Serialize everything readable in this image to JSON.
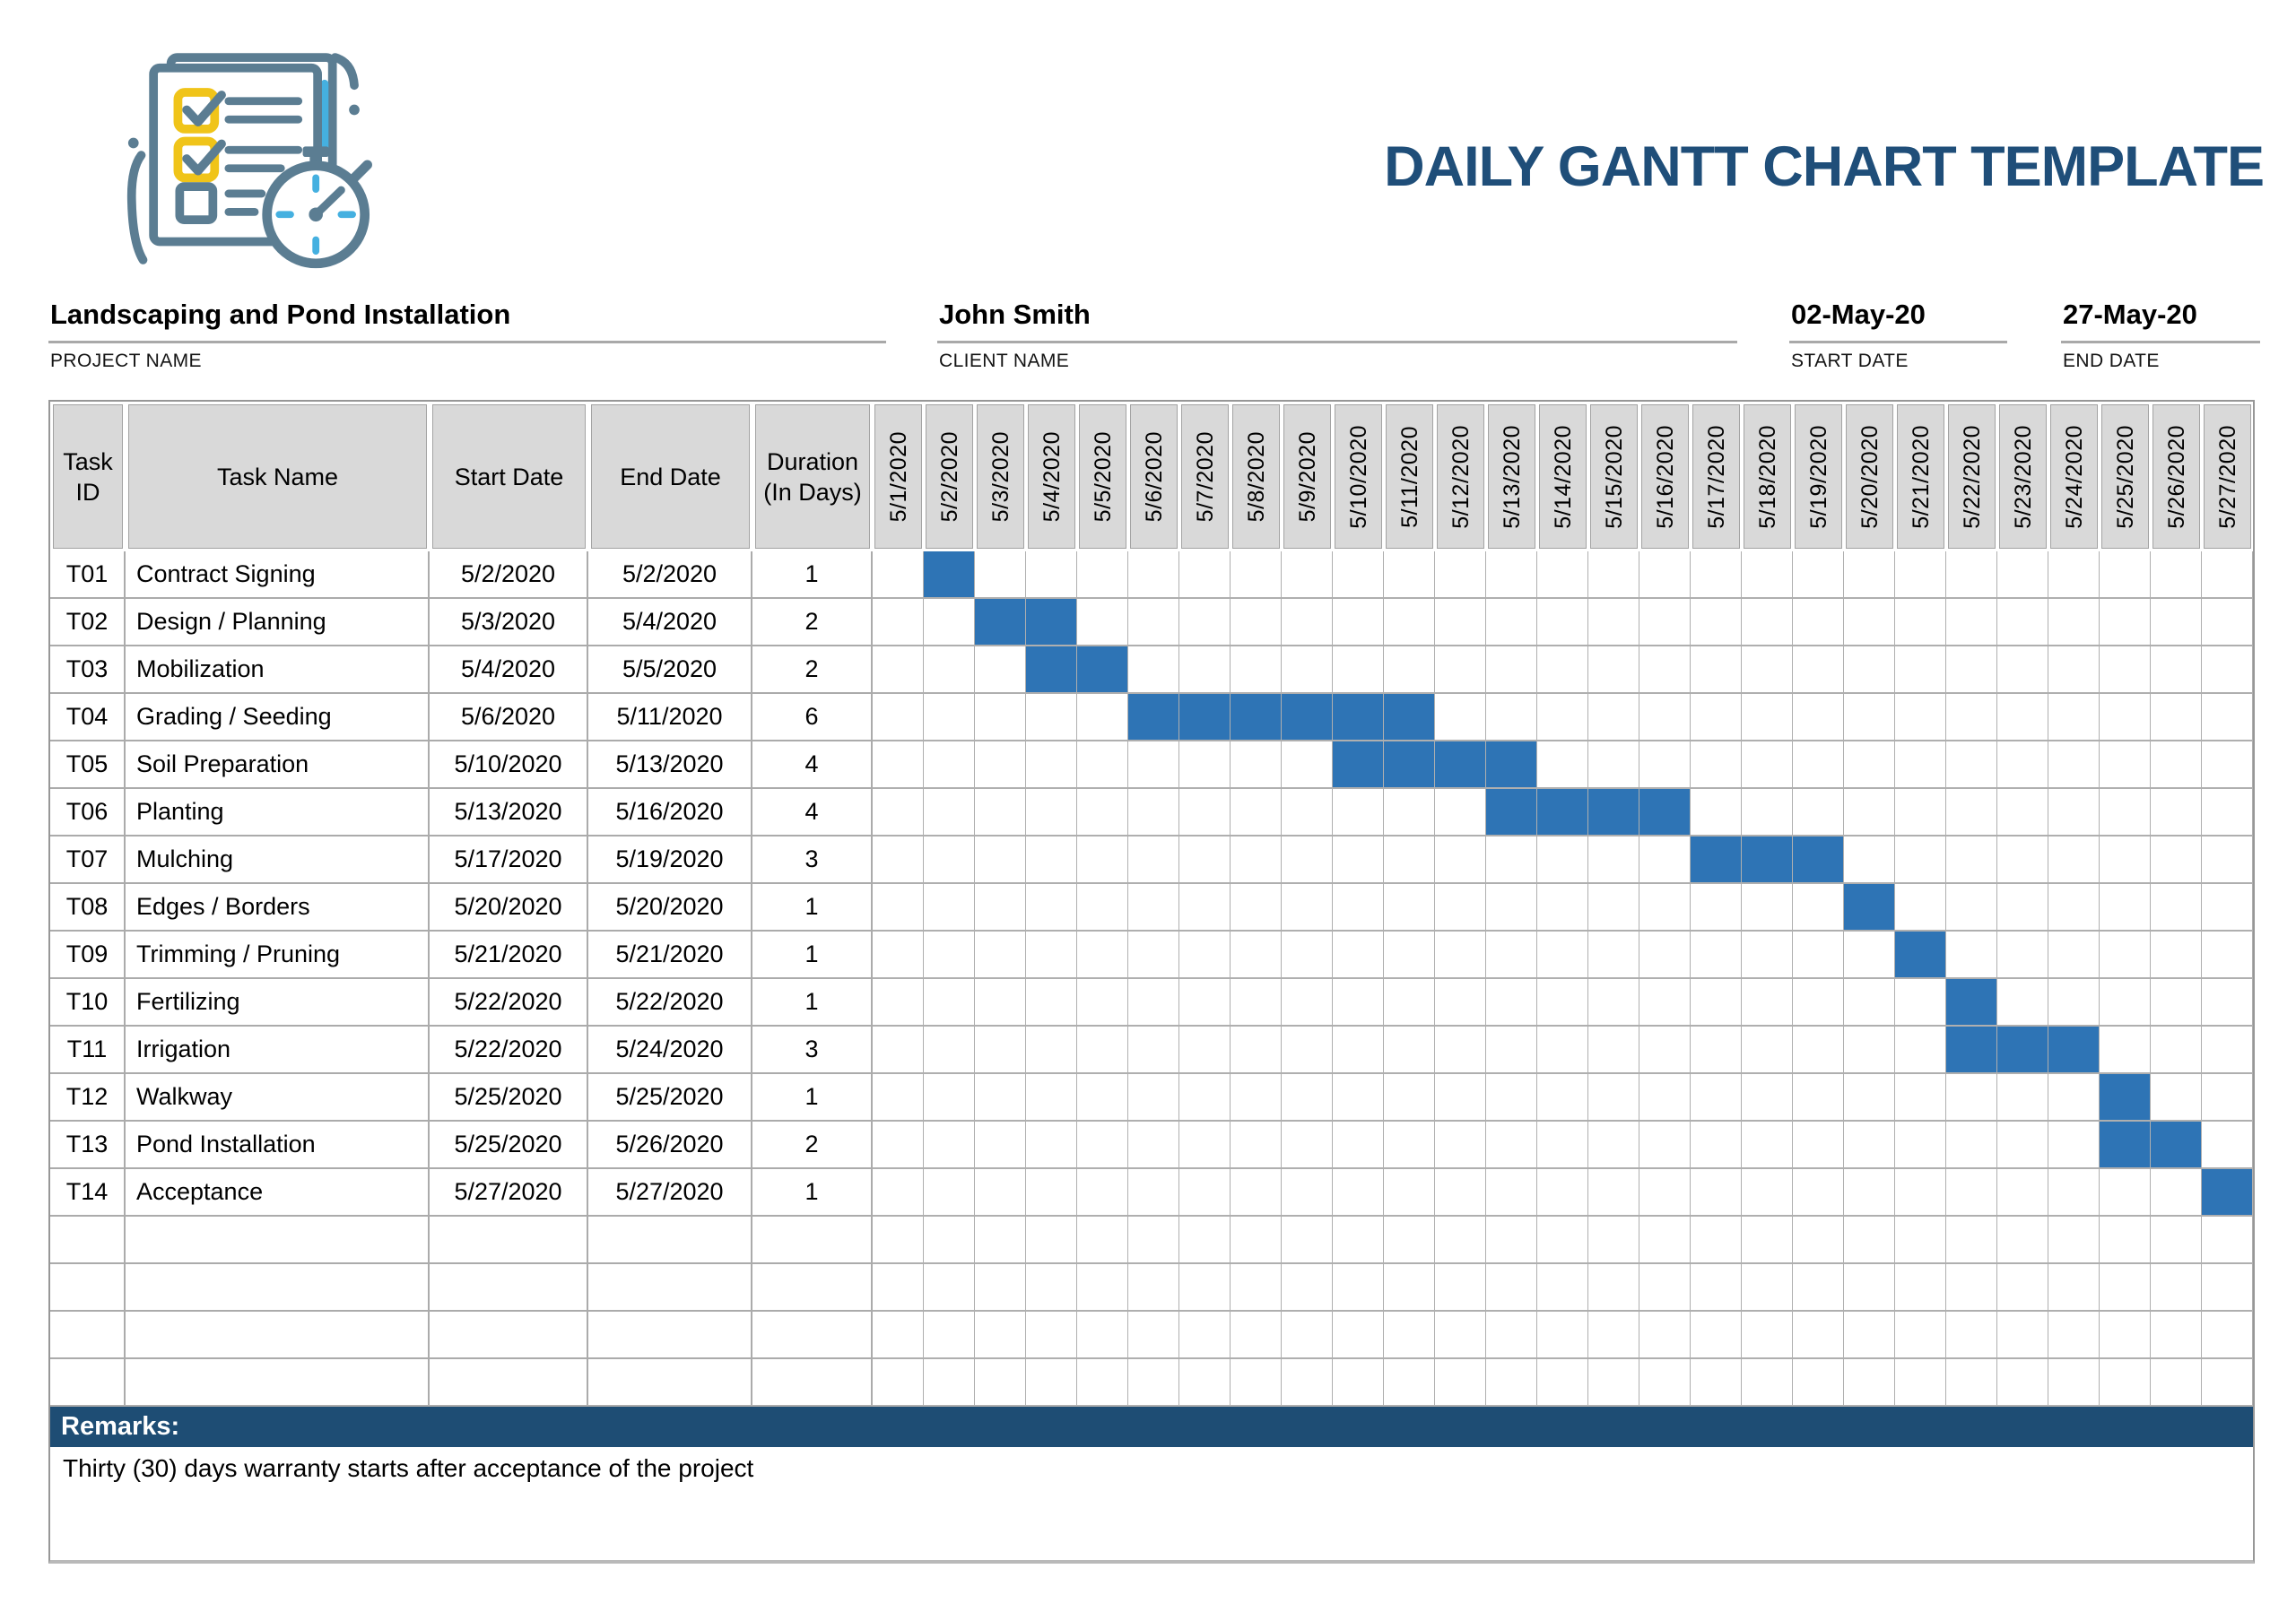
{
  "page_title": "DAILY GANTT CHART TEMPLATE",
  "logo": {
    "name": "checklist-with-stopwatch"
  },
  "info": {
    "project": {
      "value": "Landscaping and Pond Installation",
      "label": "PROJECT NAME"
    },
    "client": {
      "value": "John Smith",
      "label": "CLIENT NAME"
    },
    "start": {
      "value": "02-May-20",
      "label": "START DATE"
    },
    "end": {
      "value": "27-May-20",
      "label": "END DATE"
    }
  },
  "table": {
    "headers": {
      "task_id": "Task ID",
      "task_name": "Task Name",
      "start_date": "Start Date",
      "end_date": "End Date",
      "duration": "Duration (In Days)"
    },
    "date_columns": [
      "5/1/2020",
      "5/2/2020",
      "5/3/2020",
      "5/4/2020",
      "5/5/2020",
      "5/6/2020",
      "5/7/2020",
      "5/8/2020",
      "5/9/2020",
      "5/10/2020",
      "5/11/2020",
      "5/12/2020",
      "5/13/2020",
      "5/14/2020",
      "5/15/2020",
      "5/16/2020",
      "5/17/2020",
      "5/18/2020",
      "5/19/2020",
      "5/20/2020",
      "5/21/2020",
      "5/22/2020",
      "5/23/2020",
      "5/24/2020",
      "5/25/2020",
      "5/26/2020",
      "5/27/2020"
    ],
    "empty_row_count": 4
  },
  "remarks": {
    "label": "Remarks:",
    "text": "Thirty (30) days warranty starts after acceptance of the project"
  },
  "colors": {
    "bar_blue": "#2E74B5",
    "title_blue": "#1F4E79",
    "remarks_bar_blue": "#1E4D74",
    "header_gray": "#D9D9D9",
    "logo_slate": "#5B7D92",
    "logo_yellow": "#F0C419",
    "logo_light_blue": "#45B0E0"
  },
  "chart_data": {
    "type": "gantt",
    "title": "DAILY GANTT CHART TEMPLATE",
    "project_name": "Landscaping and Pond Installation",
    "client_name": "John Smith",
    "project_start": "02-May-20",
    "project_end": "27-May-20",
    "timeline": {
      "start": "5/1/2020",
      "end": "5/27/2020",
      "unit": "days"
    },
    "tasks": [
      {
        "id": "T01",
        "name": "Contract Signing",
        "start": "5/2/2020",
        "end": "5/2/2020",
        "duration": 1
      },
      {
        "id": "T02",
        "name": "Design / Planning",
        "start": "5/3/2020",
        "end": "5/4/2020",
        "duration": 2
      },
      {
        "id": "T03",
        "name": "Mobilization",
        "start": "5/4/2020",
        "end": "5/5/2020",
        "duration": 2
      },
      {
        "id": "T04",
        "name": "Grading / Seeding",
        "start": "5/6/2020",
        "end": "5/11/2020",
        "duration": 6
      },
      {
        "id": "T05",
        "name": "Soil Preparation",
        "start": "5/10/2020",
        "end": "5/13/2020",
        "duration": 4
      },
      {
        "id": "T06",
        "name": "Planting",
        "start": "5/13/2020",
        "end": "5/16/2020",
        "duration": 4
      },
      {
        "id": "T07",
        "name": "Mulching",
        "start": "5/17/2020",
        "end": "5/19/2020",
        "duration": 3
      },
      {
        "id": "T08",
        "name": "Edges / Borders",
        "start": "5/20/2020",
        "end": "5/20/2020",
        "duration": 1
      },
      {
        "id": "T09",
        "name": "Trimming / Pruning",
        "start": "5/21/2020",
        "end": "5/21/2020",
        "duration": 1
      },
      {
        "id": "T10",
        "name": "Fertilizing",
        "start": "5/22/2020",
        "end": "5/22/2020",
        "duration": 1
      },
      {
        "id": "T11",
        "name": "Irrigation",
        "start": "5/22/2020",
        "end": "5/24/2020",
        "duration": 3
      },
      {
        "id": "T12",
        "name": "Walkway",
        "start": "5/25/2020",
        "end": "5/25/2020",
        "duration": 1
      },
      {
        "id": "T13",
        "name": "Pond Installation",
        "start": "5/25/2020",
        "end": "5/26/2020",
        "duration": 2
      },
      {
        "id": "T14",
        "name": "Acceptance",
        "start": "5/27/2020",
        "end": "5/27/2020",
        "duration": 1
      }
    ]
  }
}
